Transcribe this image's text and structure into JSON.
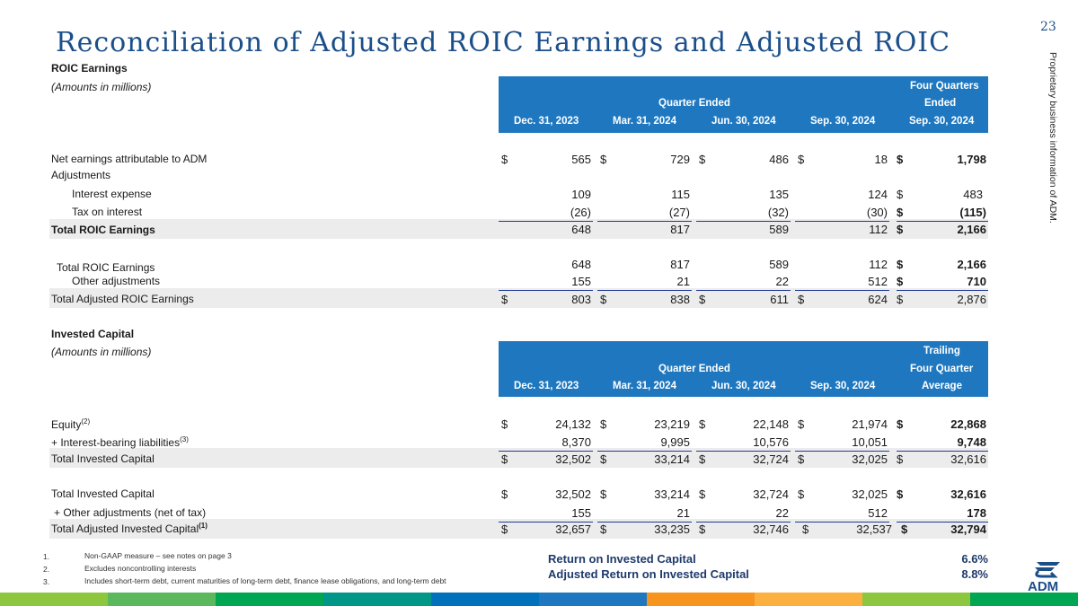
{
  "page": {
    "title": "Reconciliation of Adjusted ROIC Earnings and Adjusted ROIC",
    "page_number": "23",
    "sidebar_text": "Proprietary business information of ADM."
  },
  "roic": {
    "section_title": "ROIC Earnings",
    "amounts_note": "(Amounts in millions)",
    "header": {
      "quarter_ended": "Quarter Ended",
      "four_quarters_line1": "Four Quarters",
      "four_quarters_line2": "Ended",
      "columns": [
        "Dec. 31, 2023",
        "Mar. 31, 2024",
        "Jun. 30, 2024",
        "Sep. 30, 2024",
        "Sep. 30, 2024"
      ]
    },
    "rows": {
      "net_earnings": {
        "label": "Net earnings attributable to ADM",
        "cells": [
          [
            "$",
            "565"
          ],
          [
            "$",
            "729"
          ],
          [
            "$",
            "486"
          ],
          [
            "$",
            "18"
          ],
          [
            "$",
            "1,798"
          ]
        ]
      },
      "adjustments": {
        "label": "Adjustments"
      },
      "interest_expense": {
        "label": "Interest expense",
        "cells": [
          [
            "",
            "109"
          ],
          [
            "",
            "115"
          ],
          [
            "",
            "135"
          ],
          [
            "",
            "124"
          ],
          [
            "$",
            "483"
          ]
        ]
      },
      "tax_on_interest": {
        "label": "Tax on interest",
        "cells": [
          [
            "",
            "(26)"
          ],
          [
            "",
            "(27)"
          ],
          [
            "",
            "(32)"
          ],
          [
            "",
            "(30)"
          ],
          [
            "$",
            "(115)"
          ]
        ]
      },
      "total_roic": {
        "label": "Total ROIC Earnings",
        "cells": [
          [
            "",
            "648"
          ],
          [
            "",
            "817"
          ],
          [
            "",
            "589"
          ],
          [
            "",
            "112"
          ],
          [
            "$",
            "2,166"
          ]
        ]
      },
      "total_roic_2": {
        "label": "Total ROIC Earnings",
        "cells": [
          [
            "",
            "648"
          ],
          [
            "",
            "817"
          ],
          [
            "",
            "589"
          ],
          [
            "",
            "112"
          ],
          [
            "$",
            "2,166"
          ]
        ]
      },
      "other_adjustments": {
        "label": "Other adjustments",
        "cells": [
          [
            "",
            "155"
          ],
          [
            "",
            "21"
          ],
          [
            "",
            "22"
          ],
          [
            "",
            "512"
          ],
          [
            "$",
            "710"
          ]
        ]
      },
      "total_adjusted_roic": {
        "label": "Total Adjusted ROIC Earnings",
        "cells": [
          [
            "$",
            "803"
          ],
          [
            "$",
            "838"
          ],
          [
            "$",
            "611"
          ],
          [
            "$",
            "624"
          ],
          [
            "$",
            "2,876"
          ]
        ]
      }
    }
  },
  "invested": {
    "section_title": "Invested Capital",
    "amounts_note": "(Amounts in millions)",
    "header": {
      "quarter_ended": "Quarter Ended",
      "trailing_line1": "Trailing",
      "trailing_line2": "Four Quarter",
      "columns": [
        "Dec. 31, 2023",
        "Mar. 31, 2024",
        "Jun. 30, 2024",
        "Sep. 30, 2024",
        "Average"
      ]
    },
    "rows": {
      "equity": {
        "label": "Equity",
        "sup": "(2)",
        "cells": [
          [
            "$",
            "24,132"
          ],
          [
            "$",
            "23,219"
          ],
          [
            "$",
            "22,148"
          ],
          [
            "$",
            "21,974"
          ],
          [
            "$",
            "22,868"
          ]
        ]
      },
      "interest_bearing": {
        "label": "+   Interest-bearing liabilities",
        "sup": "(3)",
        "cells": [
          [
            "",
            "8,370"
          ],
          [
            "",
            "9,995"
          ],
          [
            "",
            "10,576"
          ],
          [
            "",
            "10,051"
          ],
          [
            "",
            "9,748"
          ]
        ]
      },
      "total_invested": {
        "label": "Total Invested Capital",
        "cells": [
          [
            "$",
            "32,502"
          ],
          [
            "$",
            "33,214"
          ],
          [
            "$",
            "32,724"
          ],
          [
            "$",
            "32,025"
          ],
          [
            "$",
            "32,616"
          ]
        ]
      },
      "total_invested_2": {
        "label": "Total Invested Capital",
        "cells": [
          [
            "$",
            "32,502"
          ],
          [
            "$",
            "33,214"
          ],
          [
            "$",
            "32,724"
          ],
          [
            "$",
            "32,025"
          ],
          [
            "$",
            "32,616"
          ]
        ]
      },
      "other_adj_net": {
        "label": "+  Other adjustments (net of tax)",
        "cells": [
          [
            "",
            "155"
          ],
          [
            "",
            "21"
          ],
          [
            "",
            "22"
          ],
          [
            "",
            "512"
          ],
          [
            "",
            "178"
          ]
        ]
      },
      "total_adj_invested": {
        "label": "Total Adjusted Invested Capital",
        "sup": "(1)",
        "cells": [
          [
            "$",
            "32,657"
          ],
          [
            "$",
            "33,235"
          ],
          [
            "$",
            "32,746"
          ],
          [
            "$",
            "32,537"
          ],
          [
            "$",
            "32,794"
          ]
        ]
      }
    }
  },
  "footnotes": [
    {
      "num": "1.",
      "text": "Non-GAAP measure – see notes on page 3"
    },
    {
      "num": "2.",
      "text": "Excludes noncontrolling interests"
    },
    {
      "num": "3.",
      "text": "Includes short-term debt, current maturities of long-term debt, finance lease obligations, and long-term debt"
    }
  ],
  "ratios": {
    "roic_label": "Return on Invested Capital",
    "roic_value": "6.6%",
    "adj_roic_label": "Adjusted Return on Invested Capital",
    "adj_roic_value": "8.8%"
  },
  "logo": {
    "text": "ADM",
    "icon": "adm-logo-icon"
  },
  "colors": {
    "header_blue": "#1f78bf",
    "title_blue": "#1b4f8a",
    "bar": [
      "#8dc63f",
      "#5cb85c",
      "#00a651",
      "#009688",
      "#0072bc",
      "#1f78bf",
      "#f7941d",
      "#fbb040",
      "#8dc63f",
      "#00a651"
    ]
  }
}
